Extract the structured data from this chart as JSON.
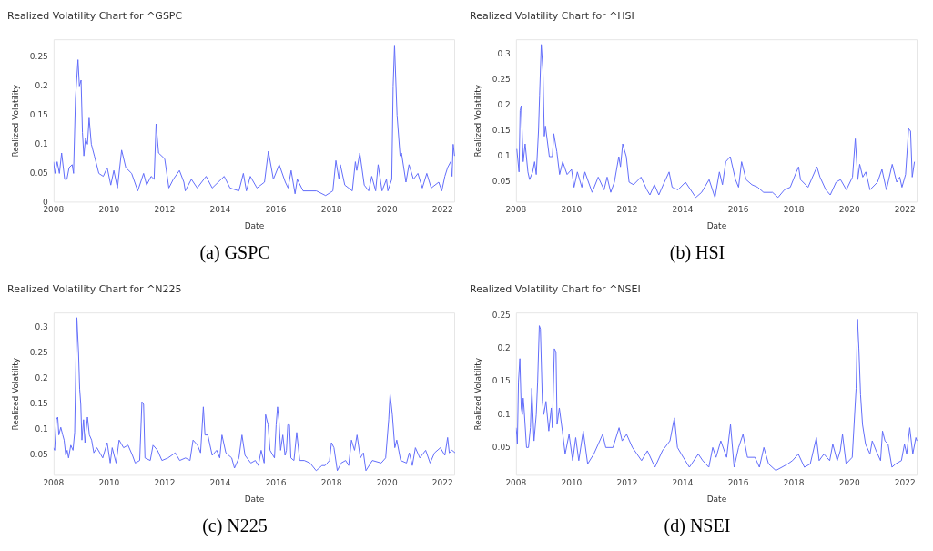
{
  "chart_data": [
    {
      "type": "line",
      "title": "Realized Volatility Chart for ^GSPC",
      "xlabel": "Date",
      "ylabel": "Realized Volatility",
      "annotations": [
        "(a) GSPC"
      ],
      "xlim": [
        2008,
        2022.45
      ],
      "xticks": [
        2008,
        2010,
        2012,
        2014,
        2016,
        2018,
        2020,
        2022
      ],
      "ylim": [
        0,
        0.28
      ],
      "yticks": [
        0,
        0.05,
        0.1,
        0.15,
        0.2,
        0.25
      ],
      "series": [
        {
          "color": "#636efa",
          "x": [
            2008.0,
            2008.05,
            2008.13,
            2008.21,
            2008.29,
            2008.4,
            2008.48,
            2008.56,
            2008.67,
            2008.72,
            2008.79,
            2008.88,
            2008.93,
            2008.99,
            2009.04,
            2009.09,
            2009.15,
            2009.22,
            2009.28,
            2009.36,
            2009.47,
            2009.63,
            2009.79,
            2009.93,
            2010.06,
            2010.17,
            2010.3,
            2010.45,
            2010.6,
            2010.81,
            2011.03,
            2011.24,
            2011.35,
            2011.51,
            2011.62,
            2011.69,
            2011.78,
            2012.0,
            2012.15,
            2012.31,
            2012.53,
            2012.69,
            2012.74,
            2012.96,
            2013.17,
            2013.49,
            2013.71,
            2014.14,
            2014.35,
            2014.67,
            2014.83,
            2014.94,
            2015.08,
            2015.32,
            2015.59,
            2015.73,
            2015.91,
            2016.12,
            2016.34,
            2016.44,
            2016.55,
            2016.69,
            2016.77,
            2016.98,
            2017.46,
            2017.79,
            2018.05,
            2018.16,
            2018.27,
            2018.32,
            2018.48,
            2018.75,
            2018.86,
            2018.91,
            2019.02,
            2019.18,
            2019.34,
            2019.45,
            2019.59,
            2019.68,
            2019.82,
            2019.98,
            2020.03,
            2020.17,
            2020.22,
            2020.27,
            2020.36,
            2020.47,
            2020.52,
            2020.68,
            2020.79,
            2020.95,
            2021.11,
            2021.27,
            2021.43,
            2021.59,
            2021.86,
            2021.97,
            2022.08,
            2022.18,
            2022.29,
            2022.34,
            2022.38,
            2022.43
          ],
          "values": [
            0.07,
            0.05,
            0.07,
            0.05,
            0.085,
            0.04,
            0.04,
            0.06,
            0.065,
            0.05,
            0.18,
            0.245,
            0.2,
            0.21,
            0.12,
            0.08,
            0.11,
            0.1,
            0.145,
            0.1,
            0.08,
            0.05,
            0.045,
            0.06,
            0.03,
            0.055,
            0.025,
            0.09,
            0.06,
            0.05,
            0.02,
            0.05,
            0.03,
            0.045,
            0.04,
            0.135,
            0.085,
            0.075,
            0.025,
            0.04,
            0.055,
            0.035,
            0.02,
            0.04,
            0.025,
            0.045,
            0.025,
            0.045,
            0.025,
            0.02,
            0.05,
            0.02,
            0.045,
            0.025,
            0.035,
            0.088,
            0.04,
            0.065,
            0.035,
            0.025,
            0.055,
            0.015,
            0.04,
            0.02,
            0.02,
            0.012,
            0.02,
            0.072,
            0.04,
            0.065,
            0.03,
            0.02,
            0.07,
            0.055,
            0.085,
            0.03,
            0.02,
            0.045,
            0.02,
            0.065,
            0.02,
            0.04,
            0.02,
            0.04,
            0.2,
            0.27,
            0.15,
            0.08,
            0.085,
            0.035,
            0.065,
            0.04,
            0.05,
            0.025,
            0.05,
            0.025,
            0.035,
            0.02,
            0.045,
            0.06,
            0.07,
            0.045,
            0.1,
            0.08
          ]
        }
      ]
    },
    {
      "type": "line",
      "title": "Realized Volatility Chart for ^HSI",
      "xlabel": "Date",
      "ylabel": "Realized Volatility",
      "annotations": [
        "(b) HSI"
      ],
      "xlim": [
        2008,
        2022.45
      ],
      "xticks": [
        2008,
        2010,
        2012,
        2014,
        2016,
        2018,
        2020,
        2022
      ],
      "ylim": [
        0.01,
        0.33
      ],
      "yticks": [
        0.05,
        0.1,
        0.15,
        0.2,
        0.25,
        0.3
      ],
      "series": [
        {
          "color": "#636efa",
          "x": [
            2008.03,
            2008.11,
            2008.15,
            2008.19,
            2008.26,
            2008.33,
            2008.43,
            2008.49,
            2008.6,
            2008.67,
            2008.73,
            2008.81,
            2008.85,
            2008.91,
            2008.97,
            2009.02,
            2009.06,
            2009.2,
            2009.31,
            2009.36,
            2009.47,
            2009.57,
            2009.68,
            2009.84,
            2010.0,
            2010.09,
            2010.21,
            2010.37,
            2010.48,
            2010.74,
            2010.96,
            2011.17,
            2011.28,
            2011.41,
            2011.54,
            2011.7,
            2011.76,
            2011.84,
            2011.97,
            2012.07,
            2012.23,
            2012.5,
            2012.71,
            2012.82,
            2012.98,
            2013.14,
            2013.3,
            2013.51,
            2013.62,
            2013.83,
            2014.1,
            2014.47,
            2014.68,
            2014.95,
            2015.16,
            2015.32,
            2015.43,
            2015.55,
            2015.71,
            2015.9,
            2016.01,
            2016.12,
            2016.28,
            2016.49,
            2016.7,
            2016.91,
            2017.23,
            2017.43,
            2017.66,
            2017.87,
            2018.09,
            2018.17,
            2018.24,
            2018.51,
            2018.83,
            2018.94,
            2019.15,
            2019.31,
            2019.52,
            2019.68,
            2019.89,
            2020.11,
            2020.21,
            2020.3,
            2020.37,
            2020.48,
            2020.59,
            2020.74,
            2021.01,
            2021.17,
            2021.33,
            2021.54,
            2021.7,
            2021.81,
            2021.89,
            2022.02,
            2022.13,
            2022.2,
            2022.26,
            2022.34
          ],
          "values": [
            0.115,
            0.07,
            0.19,
            0.2,
            0.09,
            0.125,
            0.07,
            0.055,
            0.07,
            0.09,
            0.065,
            0.15,
            0.22,
            0.32,
            0.27,
            0.14,
            0.16,
            0.1,
            0.1,
            0.145,
            0.11,
            0.065,
            0.09,
            0.065,
            0.075,
            0.04,
            0.07,
            0.04,
            0.07,
            0.03,
            0.06,
            0.035,
            0.06,
            0.03,
            0.05,
            0.1,
            0.08,
            0.125,
            0.1,
            0.05,
            0.045,
            0.06,
            0.035,
            0.025,
            0.045,
            0.025,
            0.045,
            0.07,
            0.04,
            0.035,
            0.05,
            0.02,
            0.03,
            0.055,
            0.02,
            0.07,
            0.045,
            0.09,
            0.1,
            0.055,
            0.04,
            0.09,
            0.055,
            0.045,
            0.04,
            0.03,
            0.03,
            0.02,
            0.035,
            0.04,
            0.07,
            0.08,
            0.055,
            0.04,
            0.08,
            0.06,
            0.035,
            0.025,
            0.05,
            0.055,
            0.035,
            0.06,
            0.135,
            0.055,
            0.085,
            0.06,
            0.07,
            0.035,
            0.05,
            0.075,
            0.035,
            0.085,
            0.05,
            0.06,
            0.04,
            0.065,
            0.155,
            0.15,
            0.06,
            0.09
          ]
        }
      ]
    },
    {
      "type": "line",
      "title": "Realized Volatility Chart for ^N225",
      "xlabel": "Date",
      "ylabel": "Realized Volatility",
      "annotations": [
        "(c) N225"
      ],
      "xlim": [
        2008,
        2022.45
      ],
      "xticks": [
        2008,
        2010,
        2012,
        2014,
        2016,
        2018,
        2020,
        2022
      ],
      "ylim": [
        0.01,
        0.33
      ],
      "yticks": [
        0.05,
        0.1,
        0.15,
        0.2,
        0.25,
        0.3
      ],
      "series": [
        {
          "color": "#636efa",
          "x": [
            2008.0,
            2008.04,
            2008.1,
            2008.15,
            2008.19,
            2008.26,
            2008.33,
            2008.38,
            2008.44,
            2008.49,
            2008.54,
            2008.62,
            2008.7,
            2008.76,
            2008.81,
            2008.84,
            2008.9,
            2008.94,
            2008.98,
            2009.02,
            2009.08,
            2009.13,
            2009.22,
            2009.29,
            2009.37,
            2009.45,
            2009.56,
            2009.77,
            2009.93,
            2010.04,
            2010.11,
            2010.25,
            2010.36,
            2010.52,
            2010.68,
            2010.84,
            2010.94,
            2011.1,
            2011.18,
            2011.24,
            2011.29,
            2011.48,
            2011.58,
            2011.74,
            2011.9,
            2012.12,
            2012.38,
            2012.54,
            2012.75,
            2012.91,
            2013.02,
            2013.18,
            2013.29,
            2013.39,
            2013.45,
            2013.55,
            2013.71,
            2013.87,
            2013.98,
            2014.06,
            2014.2,
            2014.41,
            2014.51,
            2014.67,
            2014.78,
            2014.89,
            2015.1,
            2015.26,
            2015.37,
            2015.47,
            2015.58,
            2015.63,
            2015.72,
            2015.79,
            2015.95,
            2016.01,
            2016.06,
            2016.11,
            2016.17,
            2016.25,
            2016.33,
            2016.38,
            2016.43,
            2016.49,
            2016.54,
            2016.65,
            2016.75,
            2016.86,
            2017.02,
            2017.23,
            2017.45,
            2017.66,
            2017.77,
            2017.93,
            2018.0,
            2018.09,
            2018.21,
            2018.35,
            2018.51,
            2018.62,
            2018.72,
            2018.83,
            2018.92,
            2019.04,
            2019.15,
            2019.24,
            2019.47,
            2019.79,
            2019.95,
            2020.06,
            2020.11,
            2020.19,
            2020.28,
            2020.35,
            2020.49,
            2020.7,
            2020.8,
            2020.91,
            2021.02,
            2021.18,
            2021.39,
            2021.55,
            2021.71,
            2021.92,
            2022.08,
            2022.18,
            2022.24,
            2022.34,
            2022.45
          ],
          "values": [
            0.065,
            0.06,
            0.12,
            0.125,
            0.09,
            0.105,
            0.09,
            0.08,
            0.05,
            0.06,
            0.045,
            0.07,
            0.06,
            0.095,
            0.25,
            0.32,
            0.25,
            0.18,
            0.15,
            0.08,
            0.12,
            0.075,
            0.125,
            0.09,
            0.08,
            0.055,
            0.065,
            0.045,
            0.075,
            0.035,
            0.065,
            0.035,
            0.08,
            0.065,
            0.07,
            0.05,
            0.035,
            0.04,
            0.155,
            0.15,
            0.045,
            0.04,
            0.07,
            0.06,
            0.04,
            0.045,
            0.055,
            0.04,
            0.045,
            0.04,
            0.08,
            0.07,
            0.055,
            0.145,
            0.09,
            0.09,
            0.05,
            0.06,
            0.045,
            0.09,
            0.055,
            0.045,
            0.025,
            0.045,
            0.09,
            0.05,
            0.035,
            0.04,
            0.03,
            0.06,
            0.035,
            0.13,
            0.11,
            0.06,
            0.045,
            0.11,
            0.145,
            0.12,
            0.06,
            0.09,
            0.05,
            0.06,
            0.11,
            0.11,
            0.045,
            0.04,
            0.095,
            0.04,
            0.04,
            0.035,
            0.02,
            0.03,
            0.03,
            0.04,
            0.075,
            0.065,
            0.02,
            0.035,
            0.04,
            0.03,
            0.08,
            0.06,
            0.09,
            0.045,
            0.055,
            0.02,
            0.04,
            0.035,
            0.045,
            0.12,
            0.17,
            0.13,
            0.065,
            0.08,
            0.04,
            0.035,
            0.055,
            0.03,
            0.065,
            0.045,
            0.06,
            0.035,
            0.055,
            0.065,
            0.05,
            0.085,
            0.055,
            0.06,
            0.055
          ]
        }
      ]
    },
    {
      "type": "line",
      "title": "Realized Volatility Chart for ^NSEI",
      "xlabel": "Date",
      "ylabel": "Realized Volatility",
      "annotations": [
        "(d) NSEI"
      ],
      "xlim": [
        2008,
        2022.45
      ],
      "xticks": [
        2008,
        2010,
        2012,
        2014,
        2016,
        2018,
        2020,
        2022
      ],
      "ylim": [
        0.007,
        0.255
      ],
      "yticks": [
        0.05,
        0.1,
        0.15,
        0.2,
        0.25
      ],
      "series": [
        {
          "color": "#636efa",
          "x": [
            2008.0,
            2008.03,
            2008.05,
            2008.09,
            2008.14,
            2008.19,
            2008.23,
            2008.26,
            2008.29,
            2008.38,
            2008.45,
            2008.52,
            2008.57,
            2008.65,
            2008.73,
            2008.78,
            2008.84,
            2008.88,
            2008.95,
            2009.0,
            2009.08,
            2009.18,
            2009.27,
            2009.31,
            2009.38,
            2009.44,
            2009.48,
            2009.56,
            2009.67,
            2009.77,
            2009.91,
            2010.04,
            2010.15,
            2010.26,
            2010.42,
            2010.58,
            2010.8,
            2011.12,
            2011.23,
            2011.49,
            2011.71,
            2011.82,
            2011.98,
            2012.19,
            2012.52,
            2012.73,
            2013.0,
            2013.27,
            2013.54,
            2013.7,
            2013.81,
            2014.02,
            2014.24,
            2014.56,
            2014.72,
            2014.94,
            2015.08,
            2015.2,
            2015.37,
            2015.58,
            2015.72,
            2015.85,
            2016.01,
            2016.17,
            2016.33,
            2016.6,
            2016.76,
            2016.92,
            2017.09,
            2017.35,
            2017.57,
            2017.78,
            2017.95,
            2018.16,
            2018.38,
            2018.59,
            2018.81,
            2018.91,
            2019.08,
            2019.29,
            2019.4,
            2019.56,
            2019.67,
            2019.75,
            2019.88,
            2020.1,
            2020.24,
            2020.29,
            2020.34,
            2020.4,
            2020.47,
            2020.58,
            2020.74,
            2020.82,
            2020.96,
            2021.12,
            2021.19,
            2021.28,
            2021.39,
            2021.53,
            2021.66,
            2021.87,
            2021.98,
            2022.06,
            2022.17,
            2022.28,
            2022.39,
            2022.43
          ],
          "values": [
            0.08,
            0.07,
            0.055,
            0.15,
            0.185,
            0.11,
            0.1,
            0.125,
            0.11,
            0.05,
            0.05,
            0.08,
            0.14,
            0.06,
            0.1,
            0.15,
            0.235,
            0.23,
            0.12,
            0.1,
            0.12,
            0.075,
            0.11,
            0.08,
            0.2,
            0.195,
            0.085,
            0.11,
            0.075,
            0.04,
            0.07,
            0.03,
            0.065,
            0.03,
            0.075,
            0.025,
            0.04,
            0.07,
            0.05,
            0.05,
            0.08,
            0.06,
            0.07,
            0.05,
            0.03,
            0.045,
            0.02,
            0.045,
            0.06,
            0.095,
            0.05,
            0.035,
            0.02,
            0.04,
            0.03,
            0.02,
            0.05,
            0.035,
            0.06,
            0.035,
            0.085,
            0.02,
            0.05,
            0.07,
            0.035,
            0.035,
            0.02,
            0.05,
            0.025,
            0.015,
            0.02,
            0.025,
            0.03,
            0.04,
            0.02,
            0.025,
            0.065,
            0.03,
            0.04,
            0.03,
            0.055,
            0.03,
            0.045,
            0.07,
            0.025,
            0.035,
            0.14,
            0.245,
            0.2,
            0.13,
            0.085,
            0.055,
            0.04,
            0.06,
            0.045,
            0.03,
            0.075,
            0.06,
            0.055,
            0.02,
            0.025,
            0.03,
            0.055,
            0.04,
            0.08,
            0.04,
            0.065,
            0.06
          ]
        }
      ]
    }
  ]
}
